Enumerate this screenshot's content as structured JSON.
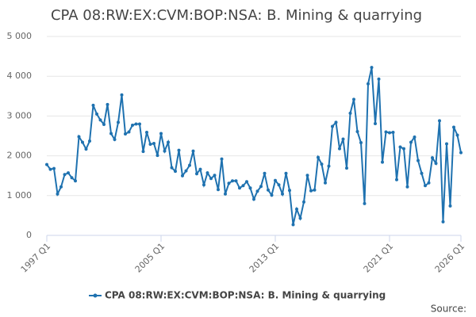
{
  "chart_data": {
    "type": "line",
    "title": "CPA 08:RW:EX:CVM:BOP:NSA: B. Mining & quarrying",
    "source": "Source:",
    "legend": "bottom",
    "grid": true,
    "categories": [
      "1997 Q1",
      null,
      null,
      null,
      null,
      null,
      null,
      null,
      null,
      null,
      null,
      null,
      null,
      null,
      null,
      null,
      null,
      null,
      null,
      null,
      null,
      null,
      null,
      null,
      null,
      null,
      null,
      null,
      null,
      null,
      null,
      null,
      "2005 Q1",
      null,
      null,
      null,
      null,
      null,
      null,
      null,
      null,
      null,
      null,
      null,
      null,
      null,
      null,
      null,
      null,
      null,
      null,
      null,
      null,
      null,
      null,
      null,
      null,
      null,
      null,
      null,
      null,
      null,
      null,
      null,
      "2013 Q1",
      null,
      null,
      null,
      null,
      null,
      null,
      null,
      null,
      null,
      null,
      null,
      null,
      null,
      null,
      null,
      null,
      null,
      null,
      null,
      null,
      null,
      null,
      null,
      null,
      null,
      null,
      null,
      null,
      null,
      null,
      null,
      "2021 Q1",
      null,
      null,
      null,
      null,
      null,
      null,
      null,
      null,
      null,
      null,
      null,
      null,
      null,
      null,
      null,
      null,
      null,
      null,
      null,
      "2026 Q1"
    ],
    "ylim": [
      0,
      5000
    ],
    "yticks": [
      0,
      {
        "value": 1000,
        "label": "1 000"
      },
      {
        "value": 2000,
        "label": "2 000"
      },
      {
        "value": 3000,
        "label": "3 000"
      },
      {
        "value": 4000,
        "label": "4 000"
      },
      {
        "value": 5000,
        "label": "5 000"
      }
    ],
    "series": [
      {
        "name": "CPA 08:RW:EX:CVM:BOP:NSA: B. Mining & quarrying",
        "color": "#1f72b0",
        "values": [
          1780,
          1660,
          1680,
          1040,
          1220,
          1530,
          1570,
          1450,
          1370,
          2480,
          2340,
          2170,
          2370,
          3270,
          3050,
          2900,
          2790,
          3290,
          2560,
          2410,
          2840,
          3530,
          2550,
          2600,
          2770,
          2800,
          2800,
          2110,
          2590,
          2290,
          2310,
          2010,
          2560,
          2120,
          2340,
          1700,
          1610,
          2140,
          1500,
          1620,
          1760,
          2120,
          1550,
          1660,
          1270,
          1570,
          1430,
          1510,
          1150,
          1920,
          1040,
          1310,
          1370,
          1370,
          1190,
          1250,
          1350,
          1190,
          910,
          1110,
          1230,
          1560,
          1140,
          1010,
          1380,
          1270,
          1040,
          1560,
          1130,
          270,
          660,
          430,
          840,
          1510,
          1120,
          1140,
          1960,
          1790,
          1320,
          1740,
          2740,
          2840,
          2180,
          2420,
          1690,
          3070,
          3420,
          2610,
          2330,
          800,
          3810,
          4220,
          2810,
          3930,
          1840,
          2600,
          2580,
          2590,
          1400,
          2220,
          2180,
          1220,
          2340,
          2470,
          1880,
          1560,
          1250,
          1320,
          1950,
          1810,
          2880,
          340,
          2300,
          740,
          2720,
          2520,
          2080
        ]
      }
    ]
  }
}
